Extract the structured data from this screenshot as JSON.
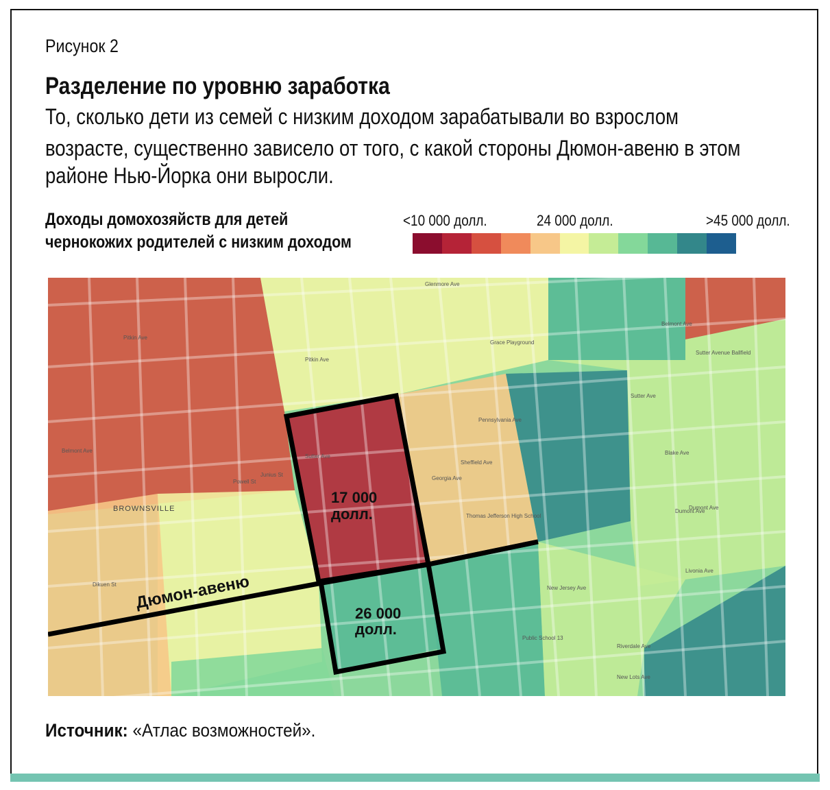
{
  "figure_label": "Рисунок 2",
  "title": "Разделение по уровню заработка",
  "subtitle_lines": [
    "То, сколько дети из семей с низким доходом зарабатывали во взрослом",
    "возрасте, существенно зависело от того, с какой стороны Дюмон-авеню в этом",
    "районе Нью-Йорка они выросли."
  ],
  "legend": {
    "title_lines": [
      "Доходы домохозяйств для детей",
      "чернокожих родителей с низким доходом"
    ],
    "label_low": "<10 000 долл.",
    "label_mid": "24 000 долл.",
    "label_high": ">45 000 долл.",
    "colors": [
      "#8b0d2e",
      "#b52337",
      "#d65040",
      "#f08a5b",
      "#f7c788",
      "#f4f5a4",
      "#c5ec96",
      "#84d89a",
      "#57b895",
      "#33878a",
      "#1d5e8f"
    ]
  },
  "map": {
    "district_label": "BROWNSVILLE",
    "avenue_label": "Дюмон-авеню",
    "north_value_lines": [
      "17 000",
      "долл."
    ],
    "south_value_lines": [
      "26 000",
      "долл."
    ],
    "streets": [
      "Glenmore Ave",
      "Pitkin Ave",
      "Grace Playground",
      "Belmont Ave",
      "Sutter Avenue Ballfield",
      "Sutter Ave",
      "Blake Ave",
      "Dumont Ave",
      "Livonia Ave",
      "Riverdale Ave",
      "New Lots Ave",
      "Public School 13",
      "Thomas Jefferson High School",
      "Pennsylvania Ave",
      "New Jersey Ave",
      "Sheffield Ave",
      "Georgia Ave",
      "Pitkin Ave",
      "Sutter Ave",
      "Belmont Ave",
      "Powell St",
      "Junius St",
      "Dumont Ave",
      "Dikuen St"
    ]
  },
  "source": {
    "label": "Источник:",
    "text": " «Атлас возможностей»."
  }
}
